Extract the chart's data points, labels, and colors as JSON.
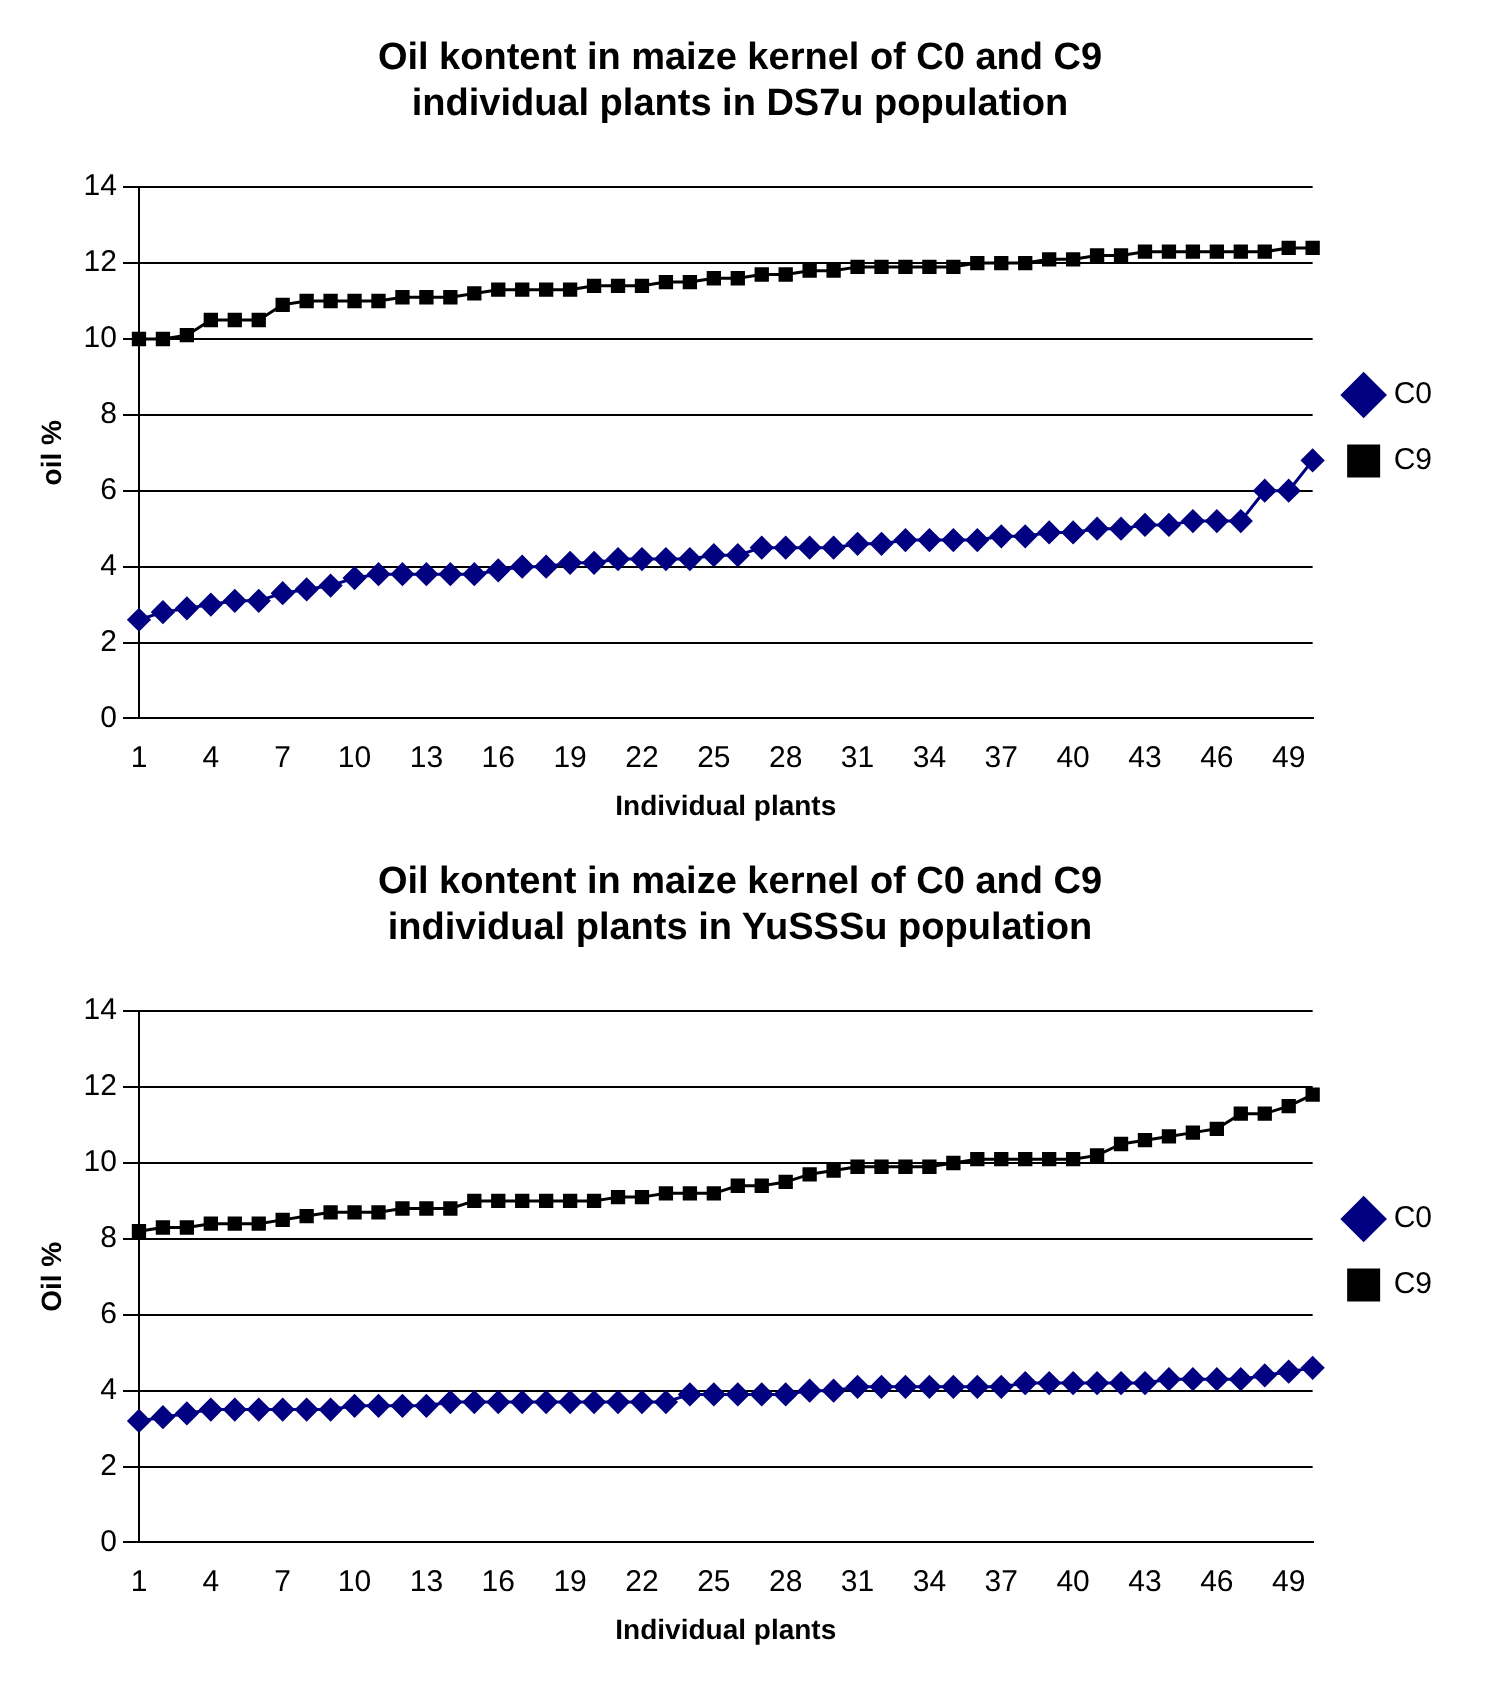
{
  "chart_data": [
    {
      "type": "line",
      "title": "Oil kontent in maize kernel of C0 and C9\nindividual plants in DS7u population",
      "xlabel": "Individual plants",
      "ylabel": "oil %",
      "categories": [
        "1",
        null,
        null,
        "4",
        null,
        null,
        "7",
        null,
        null,
        "10",
        null,
        null,
        "13",
        null,
        null,
        "16",
        null,
        null,
        "19",
        null,
        null,
        "22",
        null,
        null,
        "25",
        null,
        null,
        "28",
        null,
        null,
        "31",
        null,
        null,
        "34",
        null,
        null,
        "37",
        null,
        null,
        "40",
        null,
        null,
        "43",
        null,
        null,
        "46",
        null,
        null,
        "49",
        null
      ],
      "ylim": [
        0,
        14
      ],
      "yticks": [
        0,
        2,
        4,
        6,
        8,
        10,
        12,
        14
      ],
      "grid": "y",
      "legend": "right",
      "series": [
        {
          "name": "C0",
          "color": "#000080",
          "marker": "diamond",
          "values": [
            2.6,
            2.8,
            2.9,
            3.0,
            3.1,
            3.1,
            3.3,
            3.4,
            3.5,
            3.7,
            3.8,
            3.8,
            3.8,
            3.8,
            3.8,
            3.9,
            4.0,
            4.0,
            4.1,
            4.1,
            4.2,
            4.2,
            4.2,
            4.2,
            4.3,
            4.3,
            4.5,
            4.5,
            4.5,
            4.5,
            4.6,
            4.6,
            4.7,
            4.7,
            4.7,
            4.7,
            4.8,
            4.8,
            4.9,
            4.9,
            5.0,
            5.0,
            5.1,
            5.1,
            5.2,
            5.2,
            5.2,
            6.0,
            6.0,
            6.8
          ]
        },
        {
          "name": "C9",
          "color": "#000000",
          "marker": "square",
          "values": [
            10.0,
            10.0,
            10.1,
            10.5,
            10.5,
            10.5,
            10.9,
            11.0,
            11.0,
            11.0,
            11.0,
            11.1,
            11.1,
            11.1,
            11.2,
            11.3,
            11.3,
            11.3,
            11.3,
            11.4,
            11.4,
            11.4,
            11.5,
            11.5,
            11.6,
            11.6,
            11.7,
            11.7,
            11.8,
            11.8,
            11.9,
            11.9,
            11.9,
            11.9,
            11.9,
            12.0,
            12.0,
            12.0,
            12.1,
            12.1,
            12.2,
            12.2,
            12.3,
            12.3,
            12.3,
            12.3,
            12.3,
            12.3,
            12.4,
            12.4
          ]
        }
      ]
    },
    {
      "type": "line",
      "title": "Oil kontent in maize kernel of C0 and C9\nindividual plants in YuSSSu population",
      "xlabel": "Individual plants",
      "ylabel": "Oil %",
      "categories": [
        "1",
        null,
        null,
        "4",
        null,
        null,
        "7",
        null,
        null,
        "10",
        null,
        null,
        "13",
        null,
        null,
        "16",
        null,
        null,
        "19",
        null,
        null,
        "22",
        null,
        null,
        "25",
        null,
        null,
        "28",
        null,
        null,
        "31",
        null,
        null,
        "34",
        null,
        null,
        "37",
        null,
        null,
        "40",
        null,
        null,
        "43",
        null,
        null,
        "46",
        null,
        null,
        "49",
        null
      ],
      "ylim": [
        0,
        14
      ],
      "yticks": [
        0,
        2,
        4,
        6,
        8,
        10,
        12,
        14
      ],
      "grid": "y",
      "legend": "right",
      "series": [
        {
          "name": "C0",
          "color": "#000080",
          "marker": "diamond",
          "values": [
            3.2,
            3.3,
            3.4,
            3.5,
            3.5,
            3.5,
            3.5,
            3.5,
            3.5,
            3.6,
            3.6,
            3.6,
            3.6,
            3.7,
            3.7,
            3.7,
            3.7,
            3.7,
            3.7,
            3.7,
            3.7,
            3.7,
            3.7,
            3.9,
            3.9,
            3.9,
            3.9,
            3.9,
            4.0,
            4.0,
            4.1,
            4.1,
            4.1,
            4.1,
            4.1,
            4.1,
            4.1,
            4.2,
            4.2,
            4.2,
            4.2,
            4.2,
            4.2,
            4.3,
            4.3,
            4.3,
            4.3,
            4.4,
            4.5,
            4.6
          ]
        },
        {
          "name": "C9",
          "color": "#000000",
          "marker": "square",
          "values": [
            8.2,
            8.3,
            8.3,
            8.4,
            8.4,
            8.4,
            8.5,
            8.6,
            8.7,
            8.7,
            8.7,
            8.8,
            8.8,
            8.8,
            9.0,
            9.0,
            9.0,
            9.0,
            9.0,
            9.0,
            9.1,
            9.1,
            9.2,
            9.2,
            9.2,
            9.4,
            9.4,
            9.5,
            9.7,
            9.8,
            9.9,
            9.9,
            9.9,
            9.9,
            10.0,
            10.1,
            10.1,
            10.1,
            10.1,
            10.1,
            10.2,
            10.5,
            10.6,
            10.7,
            10.8,
            10.9,
            11.3,
            11.3,
            11.5,
            11.8
          ]
        }
      ]
    }
  ]
}
